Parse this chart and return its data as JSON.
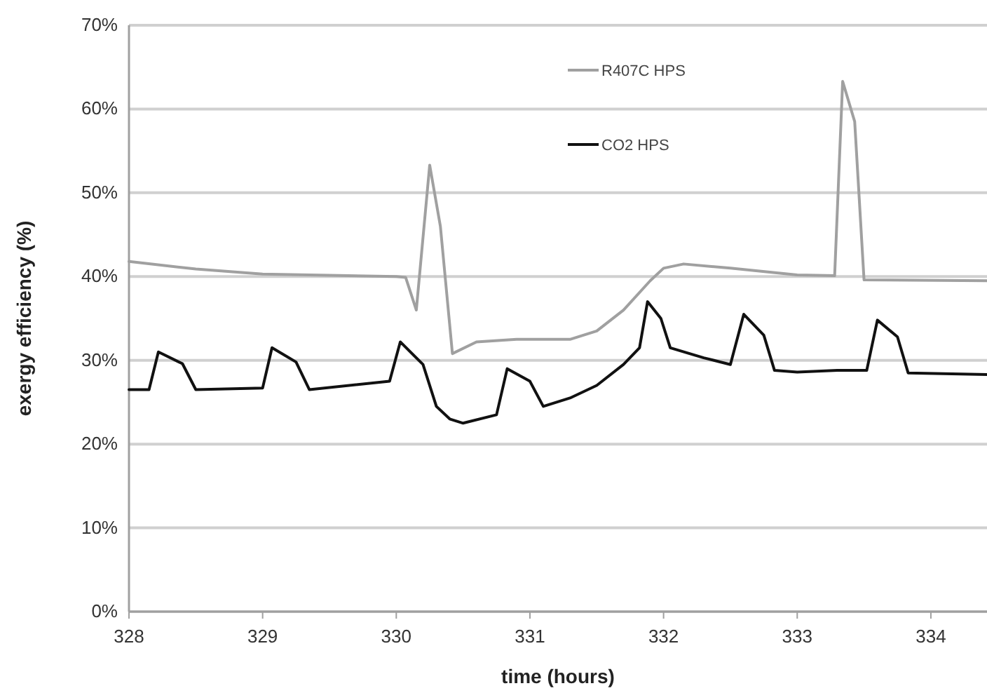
{
  "chart_data": {
    "type": "line",
    "xlabel": "time (hours)",
    "ylabel": "exergy efficiency (%)",
    "xlim": [
      328,
      334.42
    ],
    "xticks": [
      328,
      329,
      330,
      331,
      332,
      333,
      334
    ],
    "ylim": [
      0,
      70
    ],
    "yticks": [
      {
        "value": 0,
        "label": "0%"
      },
      {
        "value": 10,
        "label": "10%"
      },
      {
        "value": 20,
        "label": "20%"
      },
      {
        "value": 30,
        "label": "30%"
      },
      {
        "value": 40,
        "label": "40%"
      },
      {
        "value": 50,
        "label": "50%"
      },
      {
        "value": 60,
        "label": "60%"
      },
      {
        "value": 70,
        "label": "70%"
      }
    ],
    "grid": "y",
    "legend": "top",
    "marker": "none",
    "line_style": "solid",
    "series": [
      {
        "name": "R407C HPS",
        "color": "#a0a0a0",
        "x": [
          328,
          328.5,
          329,
          330,
          330.07,
          330.15,
          330.25,
          330.33,
          330.42,
          330.6,
          330.9,
          331.3,
          331.5,
          331.7,
          331.9,
          332,
          332.15,
          332.5,
          333,
          333.28,
          333.34,
          333.43,
          333.5,
          334.42
        ],
        "values": [
          41.8,
          40.9,
          40.3,
          40,
          39.9,
          36,
          53.3,
          46,
          30.8,
          32.2,
          32.5,
          32.5,
          33.5,
          36,
          39.5,
          41,
          41.5,
          41,
          40.2,
          40.1,
          63.3,
          58.5,
          39.6,
          39.5
        ]
      },
      {
        "name": "CO2 HPS",
        "color": "#111111",
        "x": [
          328,
          328.15,
          328.22,
          328.4,
          328.5,
          329,
          329.07,
          329.25,
          329.35,
          329.95,
          330.03,
          330.2,
          330.3,
          330.4,
          330.5,
          330.75,
          330.83,
          331,
          331.1,
          331.3,
          331.5,
          331.7,
          331.82,
          331.88,
          331.98,
          332.05,
          332.3,
          332.5,
          332.6,
          332.75,
          332.83,
          333,
          333.3,
          333.52,
          333.6,
          333.75,
          333.83,
          334.42
        ],
        "values": [
          26.5,
          26.5,
          31,
          29.6,
          26.5,
          26.7,
          31.5,
          29.8,
          26.5,
          27.5,
          32.2,
          29.5,
          24.5,
          23,
          22.5,
          23.5,
          29,
          27.5,
          24.5,
          25.5,
          27,
          29.5,
          31.5,
          37,
          35,
          31.5,
          30.3,
          29.5,
          35.5,
          33,
          28.8,
          28.6,
          28.8,
          28.8,
          34.8,
          32.8,
          28.5,
          28.3
        ]
      }
    ]
  }
}
